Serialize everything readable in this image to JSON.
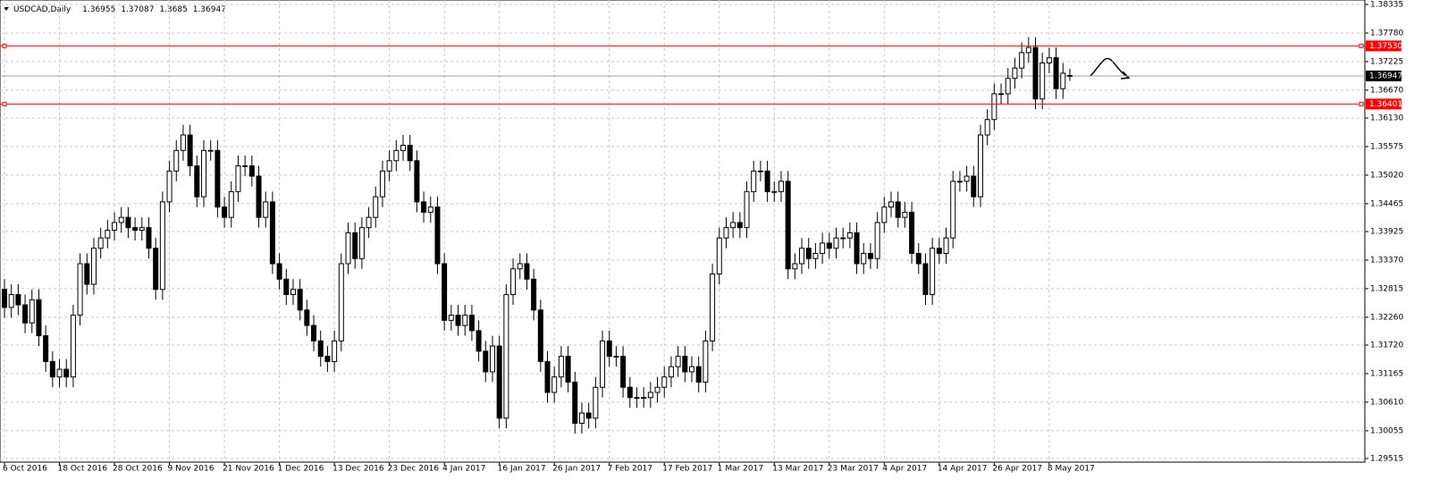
{
  "chart_data": {
    "type": "candlestick",
    "title": "USDCAD,Daily",
    "bull_color": "#ffffff",
    "bear_color": "#000000",
    "grid": true,
    "categories": [
      "6 Oct 2016",
      null,
      null,
      null,
      null,
      null,
      null,
      null,
      "18 Oct 2016",
      null,
      null,
      null,
      null,
      null,
      null,
      null,
      "28 Oct 2016",
      null,
      null,
      null,
      null,
      null,
      null,
      null,
      "9 Nov 2016",
      null,
      null,
      null,
      null,
      null,
      null,
      null,
      "21 Nov 2016",
      null,
      null,
      null,
      null,
      null,
      null,
      null,
      "1 Dec 2016",
      null,
      null,
      null,
      null,
      null,
      null,
      null,
      "13 Dec 2016",
      null,
      null,
      null,
      null,
      null,
      null,
      null,
      "23 Dec 2016",
      null,
      null,
      null,
      null,
      null,
      null,
      null,
      "4 Jan 2017",
      null,
      null,
      null,
      null,
      null,
      null,
      null,
      "16 Jan 2017",
      null,
      null,
      null,
      null,
      null,
      null,
      null,
      "26 Jan 2017",
      null,
      null,
      null,
      null,
      null,
      null,
      null,
      "7 Feb 2017",
      null,
      null,
      null,
      null,
      null,
      null,
      null,
      "17 Feb 2017",
      null,
      null,
      null,
      null,
      null,
      null,
      null,
      "1 Mar 2017",
      null,
      null,
      null,
      null,
      null,
      null,
      null,
      "13 Mar 2017",
      null,
      null,
      null,
      null,
      null,
      null,
      null,
      "23 Mar 2017",
      null,
      null,
      null,
      null,
      null,
      null,
      null,
      "4 Apr 2017",
      null,
      null,
      null,
      null,
      null,
      null,
      null,
      "14 Apr 2017",
      null,
      null,
      null,
      null,
      null,
      null,
      null,
      "26 Apr 2017",
      null,
      null,
      null,
      null,
      null,
      null,
      null,
      "8 May 2017",
      null,
      null,
      null
    ],
    "open": [
      1.328,
      1.3245,
      1.327,
      1.325,
      1.3215,
      1.326,
      1.319,
      1.314,
      1.311,
      1.3125,
      1.311,
      1.323,
      1.333,
      1.329,
      1.336,
      1.338,
      1.3395,
      1.341,
      1.342,
      1.34,
      1.3395,
      1.34,
      1.336,
      1.328,
      1.345,
      1.351,
      1.355,
      1.358,
      1.352,
      1.346,
      1.355,
      1.355,
      1.344,
      1.342,
      1.347,
      1.352,
      1.352,
      1.35,
      1.342,
      1.345,
      1.333,
      1.33,
      1.327,
      1.328,
      1.324,
      1.321,
      1.318,
      1.315,
      1.314,
      1.318,
      1.333,
      1.339,
      1.334,
      1.34,
      1.342,
      1.346,
      1.351,
      1.353,
      1.355,
      1.356,
      1.353,
      1.345,
      1.343,
      1.344,
      1.333,
      1.322,
      1.323,
      1.321,
      1.323,
      1.32,
      1.316,
      1.312,
      1.317,
      1.303,
      1.327,
      1.332,
      1.333,
      1.33,
      1.324,
      1.314,
      1.308,
      1.311,
      1.315,
      1.31,
      1.302,
      1.304,
      1.303,
      1.309,
      1.318,
      1.315,
      1.315,
      1.309,
      1.307,
      1.307,
      1.307,
      1.308,
      1.309,
      1.311,
      1.313,
      1.315,
      1.312,
      1.313,
      1.31,
      1.318,
      1.331,
      1.338,
      1.34,
      1.341,
      1.34,
      1.347,
      1.351,
      1.351,
      1.347,
      1.347,
      1.349,
      1.332,
      1.333,
      1.336,
      1.334,
      1.335,
      1.337,
      1.336,
      1.338,
      1.338,
      1.339,
      1.333,
      1.335,
      1.334,
      1.341,
      1.344,
      1.345,
      1.342,
      1.343,
      1.335,
      1.333,
      1.327,
      1.336,
      1.335,
      1.338,
      1.349,
      1.349,
      1.35,
      1.346,
      1.358,
      1.361,
      1.366,
      1.366,
      1.369,
      1.371,
      1.374,
      1.375,
      1.365,
      1.372,
      1.373,
      1.367,
      1.36955
    ],
    "high": [
      1.33,
      1.329,
      1.329,
      1.327,
      1.328,
      1.328,
      1.321,
      1.316,
      1.3145,
      1.3145,
      1.325,
      1.335,
      1.335,
      1.338,
      1.34,
      1.3415,
      1.343,
      1.344,
      1.344,
      1.342,
      1.342,
      1.342,
      1.338,
      1.347,
      1.353,
      1.357,
      1.36,
      1.36,
      1.354,
      1.357,
      1.357,
      1.357,
      1.346,
      1.349,
      1.354,
      1.354,
      1.354,
      1.352,
      1.347,
      1.347,
      1.335,
      1.332,
      1.33,
      1.33,
      1.326,
      1.323,
      1.32,
      1.317,
      1.32,
      1.335,
      1.341,
      1.341,
      1.342,
      1.344,
      1.348,
      1.353,
      1.355,
      1.357,
      1.358,
      1.358,
      1.355,
      1.347,
      1.346,
      1.346,
      1.335,
      1.325,
      1.325,
      1.325,
      1.325,
      1.322,
      1.318,
      1.319,
      1.319,
      1.329,
      1.334,
      1.335,
      1.335,
      1.332,
      1.326,
      1.316,
      1.313,
      1.317,
      1.317,
      1.312,
      1.306,
      1.306,
      1.311,
      1.32,
      1.32,
      1.317,
      1.317,
      1.311,
      1.309,
      1.309,
      1.31,
      1.311,
      1.313,
      1.315,
      1.317,
      1.317,
      1.315,
      1.315,
      1.32,
      1.333,
      1.34,
      1.342,
      1.343,
      1.343,
      1.349,
      1.353,
      1.353,
      1.353,
      1.349,
      1.351,
      1.351,
      1.335,
      1.338,
      1.338,
      1.337,
      1.339,
      1.339,
      1.34,
      1.34,
      1.341,
      1.341,
      1.337,
      1.337,
      1.343,
      1.346,
      1.347,
      1.347,
      1.345,
      1.345,
      1.337,
      1.335,
      1.338,
      1.338,
      1.34,
      1.351,
      1.351,
      1.352,
      1.352,
      1.36,
      1.363,
      1.368,
      1.368,
      1.371,
      1.373,
      1.376,
      1.377,
      1.377,
      1.374,
      1.375,
      1.375,
      1.372,
      1.37087
    ],
    "low": [
      1.3225,
      1.3225,
      1.323,
      1.3195,
      1.3195,
      1.317,
      1.312,
      1.309,
      1.309,
      1.309,
      1.309,
      1.321,
      1.327,
      1.327,
      1.334,
      1.336,
      1.3375,
      1.339,
      1.338,
      1.3375,
      1.3375,
      1.334,
      1.326,
      1.326,
      1.343,
      1.349,
      1.353,
      1.35,
      1.344,
      1.344,
      1.353,
      1.342,
      1.34,
      1.34,
      1.345,
      1.35,
      1.348,
      1.34,
      1.34,
      1.331,
      1.328,
      1.325,
      1.325,
      1.322,
      1.319,
      1.316,
      1.313,
      1.312,
      1.312,
      1.316,
      1.331,
      1.332,
      1.332,
      1.338,
      1.34,
      1.344,
      1.349,
      1.351,
      1.353,
      1.351,
      1.343,
      1.341,
      1.341,
      1.331,
      1.32,
      1.32,
      1.319,
      1.319,
      1.318,
      1.314,
      1.31,
      1.31,
      1.301,
      1.301,
      1.325,
      1.33,
      1.328,
      1.322,
      1.312,
      1.306,
      1.306,
      1.309,
      1.308,
      1.3,
      1.3,
      1.301,
      1.301,
      1.307,
      1.313,
      1.313,
      1.307,
      1.305,
      1.305,
      1.305,
      1.305,
      1.306,
      1.307,
      1.309,
      1.311,
      1.31,
      1.31,
      1.308,
      1.308,
      1.316,
      1.329,
      1.336,
      1.338,
      1.338,
      1.338,
      1.345,
      1.349,
      1.345,
      1.345,
      1.345,
      1.33,
      1.33,
      1.331,
      1.332,
      1.332,
      1.333,
      1.334,
      1.334,
      1.336,
      1.336,
      1.331,
      1.331,
      1.332,
      1.332,
      1.339,
      1.342,
      1.34,
      1.34,
      1.333,
      1.331,
      1.325,
      1.325,
      1.333,
      1.333,
      1.336,
      1.347,
      1.347,
      1.344,
      1.344,
      1.356,
      1.359,
      1.364,
      1.364,
      1.367,
      1.369,
      1.372,
      1.363,
      1.363,
      1.37,
      1.365,
      1.365,
      1.3685
    ],
    "close": [
      1.3245,
      1.327,
      1.325,
      1.3215,
      1.326,
      1.319,
      1.314,
      1.311,
      1.3125,
      1.311,
      1.323,
      1.333,
      1.329,
      1.336,
      1.338,
      1.3395,
      1.341,
      1.342,
      1.34,
      1.3395,
      1.34,
      1.336,
      1.328,
      1.345,
      1.351,
      1.355,
      1.358,
      1.352,
      1.346,
      1.355,
      1.355,
      1.344,
      1.342,
      1.347,
      1.352,
      1.352,
      1.35,
      1.342,
      1.345,
      1.333,
      1.33,
      1.327,
      1.328,
      1.324,
      1.321,
      1.318,
      1.315,
      1.314,
      1.318,
      1.333,
      1.339,
      1.334,
      1.34,
      1.342,
      1.346,
      1.351,
      1.353,
      1.355,
      1.356,
      1.353,
      1.345,
      1.343,
      1.344,
      1.333,
      1.322,
      1.323,
      1.321,
      1.323,
      1.32,
      1.316,
      1.312,
      1.317,
      1.303,
      1.327,
      1.332,
      1.333,
      1.33,
      1.324,
      1.314,
      1.308,
      1.311,
      1.315,
      1.31,
      1.302,
      1.304,
      1.303,
      1.309,
      1.318,
      1.315,
      1.315,
      1.309,
      1.307,
      1.307,
      1.307,
      1.308,
      1.309,
      1.311,
      1.313,
      1.315,
      1.312,
      1.313,
      1.31,
      1.318,
      1.331,
      1.338,
      1.34,
      1.341,
      1.34,
      1.347,
      1.351,
      1.351,
      1.347,
      1.347,
      1.349,
      1.332,
      1.333,
      1.336,
      1.334,
      1.335,
      1.337,
      1.336,
      1.338,
      1.338,
      1.339,
      1.333,
      1.335,
      1.334,
      1.341,
      1.344,
      1.345,
      1.342,
      1.343,
      1.335,
      1.333,
      1.327,
      1.336,
      1.335,
      1.338,
      1.349,
      1.349,
      1.35,
      1.346,
      1.358,
      1.361,
      1.366,
      1.366,
      1.369,
      1.371,
      1.374,
      1.375,
      1.365,
      1.372,
      1.373,
      1.367,
      1.37,
      1.36947
    ],
    "ylim": [
      1.29515,
      1.38335
    ],
    "yticks": [
      1.38335,
      {
        "value": 1.3778,
        "label": "1.37780"
      },
      1.37225,
      {
        "value": 1.3667,
        "label": "1.36670"
      },
      {
        "value": 1.3613,
        "label": "1.36130"
      },
      1.35575,
      {
        "value": 1.3502,
        "label": "1.35020"
      },
      1.34465,
      1.33925,
      {
        "value": 1.3337,
        "label": "1.33370"
      },
      1.32815,
      {
        "value": 1.3226,
        "label": "1.32260"
      },
      {
        "value": 1.3172,
        "label": "1.31720"
      },
      1.31165,
      {
        "value": 1.3061,
        "label": "1.30610"
      },
      1.30055,
      1.29515
    ],
    "hlines": [
      {
        "value": 1.3753,
        "label": "1.37530",
        "color": "#ff0000"
      },
      {
        "value": 1.36401,
        "color": "#ff0000"
      }
    ]
  }
}
